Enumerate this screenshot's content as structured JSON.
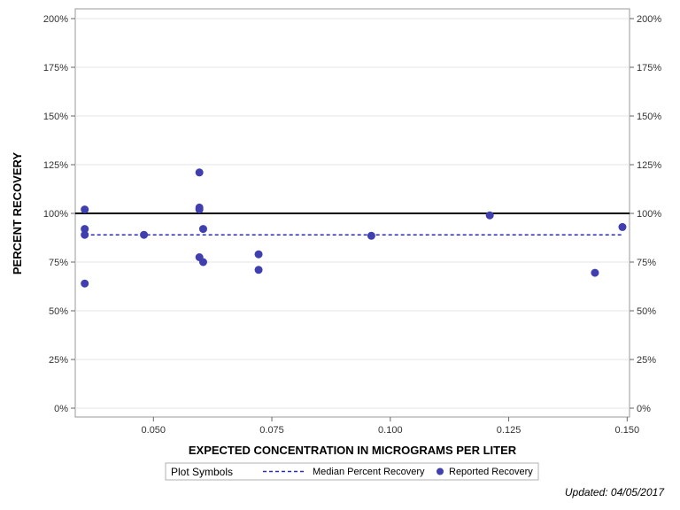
{
  "chart_data": {
    "type": "scatter",
    "xlabel": "EXPECTED CONCENTRATION IN MICROGRAMS PER LITER",
    "ylabel": "PERCENT RECOVERY",
    "xlim": [
      0.0335,
      0.1505
    ],
    "ylim": [
      0,
      200
    ],
    "x_ticks": [
      0.05,
      0.075,
      0.1,
      0.125,
      0.15
    ],
    "x_tick_labels": [
      "0.050",
      "0.075",
      "0.100",
      "0.125",
      "0.150"
    ],
    "y_ticks": [
      0,
      25,
      50,
      75,
      100,
      125,
      150,
      175,
      200
    ],
    "y_tick_labels": [
      "0%",
      "25%",
      "50%",
      "75%",
      "100%",
      "125%",
      "150%",
      "175%",
      "200%"
    ],
    "grid": "horizontal",
    "reference_line": {
      "y": 100,
      "color": "#000000"
    },
    "median_line": {
      "name": "Median Percent Recovery",
      "y": 89,
      "x_range": [
        0.0355,
        0.149
      ],
      "color": "#2b2bb8",
      "style": "dashed"
    },
    "series": [
      {
        "name": "Reported Recovery",
        "color": "#3f3fb0",
        "points": [
          {
            "x": 0.0355,
            "y": 102
          },
          {
            "x": 0.0355,
            "y": 92
          },
          {
            "x": 0.0355,
            "y": 89
          },
          {
            "x": 0.0355,
            "y": 64
          },
          {
            "x": 0.048,
            "y": 89
          },
          {
            "x": 0.0597,
            "y": 121
          },
          {
            "x": 0.0597,
            "y": 103
          },
          {
            "x": 0.0597,
            "y": 102
          },
          {
            "x": 0.0597,
            "y": 77.5
          },
          {
            "x": 0.0605,
            "y": 92
          },
          {
            "x": 0.0605,
            "y": 75
          },
          {
            "x": 0.0722,
            "y": 79
          },
          {
            "x": 0.0722,
            "y": 71
          },
          {
            "x": 0.096,
            "y": 88.5
          },
          {
            "x": 0.121,
            "y": 99
          },
          {
            "x": 0.1432,
            "y": 69.5
          },
          {
            "x": 0.149,
            "y": 93
          }
        ]
      }
    ],
    "legend": {
      "title": "Plot Symbols",
      "position": "bottom-center",
      "entries": [
        {
          "label": "Median Percent Recovery",
          "symbol": "dashed-line"
        },
        {
          "label": "Reported Recovery",
          "symbol": "dot"
        }
      ]
    }
  },
  "footer": {
    "updated": "Updated: 04/05/2017"
  }
}
